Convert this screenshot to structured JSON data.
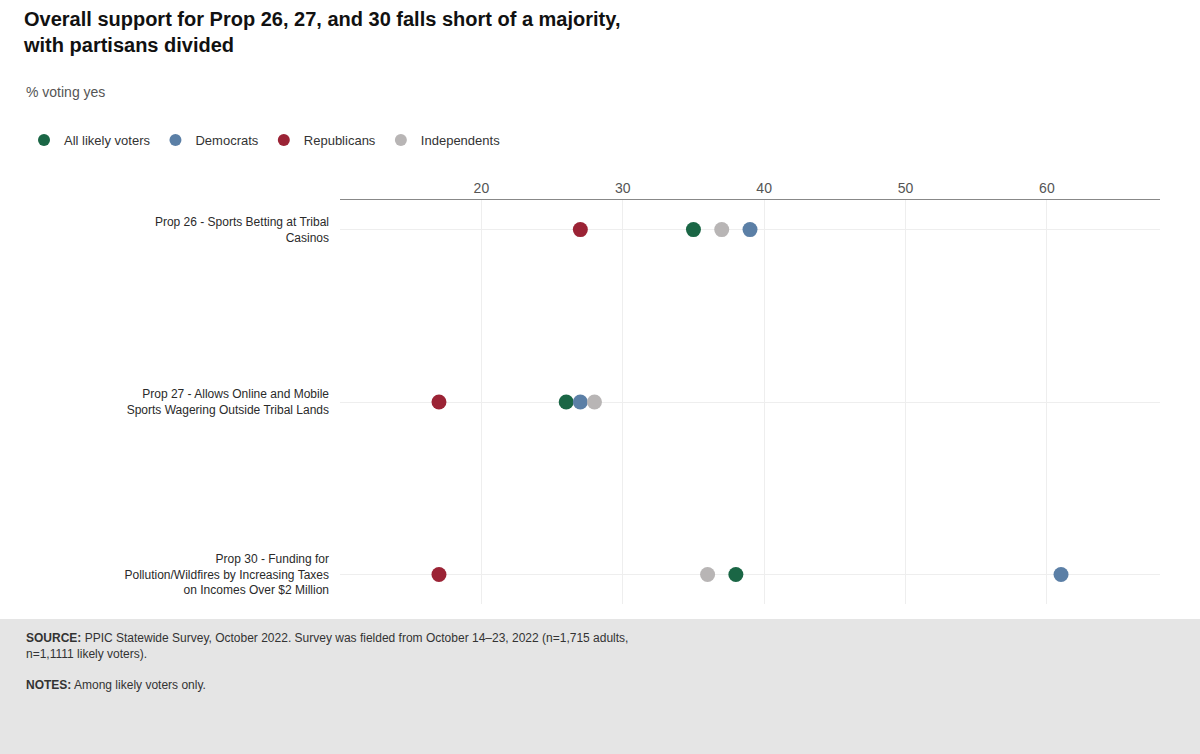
{
  "chart_data": {
    "type": "dot",
    "title": "Overall support for Prop 26, 27, and 30 falls short of a majority,\nwith partisans divided",
    "subtitle": "% voting yes",
    "categories": [
      "Prop 26 - Sports Betting at Tribal\nCasinos",
      "Prop 27 - Allows Online and Mobile\nSports Wagering Outside Tribal Lands",
      "Prop 30 - Funding for\nPollution/Wildfires by Increasing Taxes\non Incomes Over $2 Million"
    ],
    "series": [
      {
        "name": "All likely voters",
        "color": "#1a6645",
        "values": [
          35,
          26,
          38
        ]
      },
      {
        "name": "Democrats",
        "color": "#5b7fa6",
        "values": [
          39,
          27,
          61
        ]
      },
      {
        "name": "Republicans",
        "color": "#9b2335",
        "values": [
          27,
          17,
          17
        ]
      },
      {
        "name": "Independents",
        "color": "#b8b5b5",
        "values": [
          37,
          28,
          36
        ]
      }
    ],
    "xlim": [
      10,
      68
    ],
    "xticks": [
      20,
      30,
      40,
      50,
      60
    ],
    "grid": true,
    "legend": "top",
    "annotations": [
      "SOURCE: PPIC Statewide Survey, October 2022. Survey was fielded from October 14–23, 2022 (n=1,715 adults,\nn=1,1111 likely voters).",
      "NOTES: Among likely voters only."
    ]
  }
}
